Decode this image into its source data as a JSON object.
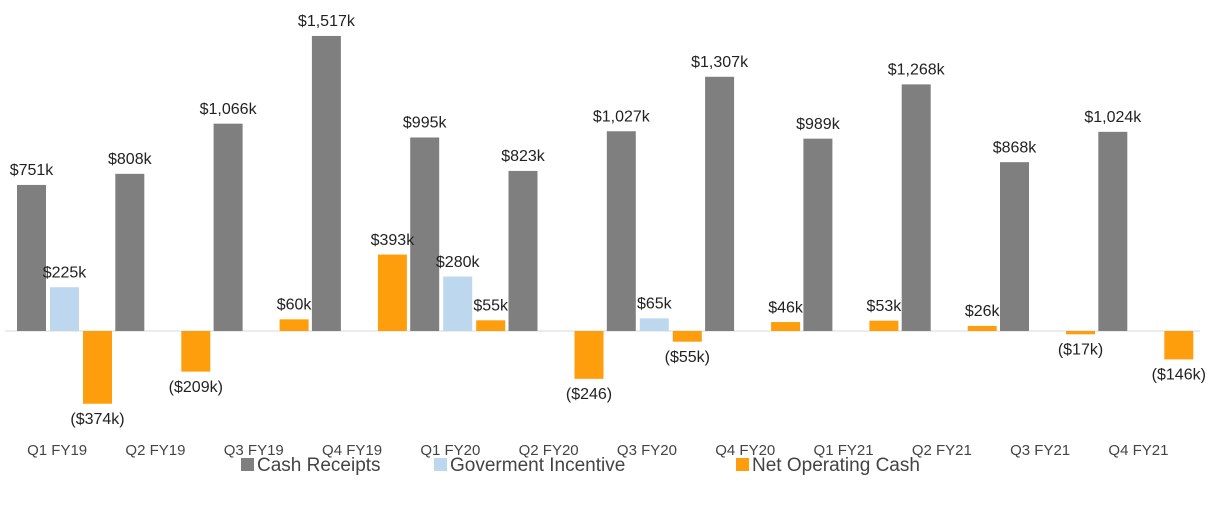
{
  "chart_data": {
    "type": "bar",
    "categories": [
      "Q1 FY19",
      "Q2 FY19",
      "Q3 FY19",
      "Q4 FY19",
      "Q1 FY20",
      "Q2 FY20",
      "Q3 FY20",
      "Q4 FY20",
      "Q1 FY21",
      "Q2 FY21",
      "Q3 FY21",
      "Q4 FY21"
    ],
    "series": [
      {
        "name": "Cash Receipts",
        "color": "#7f7f7f",
        "values": [
          751,
          808,
          1066,
          1517,
          995,
          823,
          1027,
          1307,
          989,
          1268,
          868,
          1024
        ],
        "value_labels": [
          "$751k",
          "$808k",
          "$1,066k",
          "$1,517k",
          "$995k",
          "$823k",
          "$1,027k",
          "$1,307k",
          "$989k",
          "$1,268k",
          "$868k",
          "$1,024k"
        ]
      },
      {
        "name": "Goverment Incentive",
        "color": "#bdd7ee",
        "values": [
          225,
          null,
          null,
          null,
          280,
          null,
          65,
          null,
          null,
          null,
          null,
          null
        ],
        "value_labels": [
          "$225k",
          null,
          null,
          null,
          "$280k",
          null,
          "$65k",
          null,
          null,
          null,
          null,
          null
        ]
      },
      {
        "name": "Net Operating Cash",
        "color": "#ff9e0c",
        "values": [
          -374,
          -209,
          60,
          393,
          55,
          -246,
          -55,
          46,
          53,
          26,
          -17,
          -146
        ],
        "value_labels": [
          "($374k)",
          "($209k)",
          "$60k",
          "$393k",
          "$55k",
          "($246)",
          "($55k)",
          "$46k",
          "$53k",
          "$26k",
          "($17k)",
          "($146k)"
        ]
      }
    ],
    "ylim": [
      -400,
      1600
    ],
    "legend": "bottom"
  }
}
